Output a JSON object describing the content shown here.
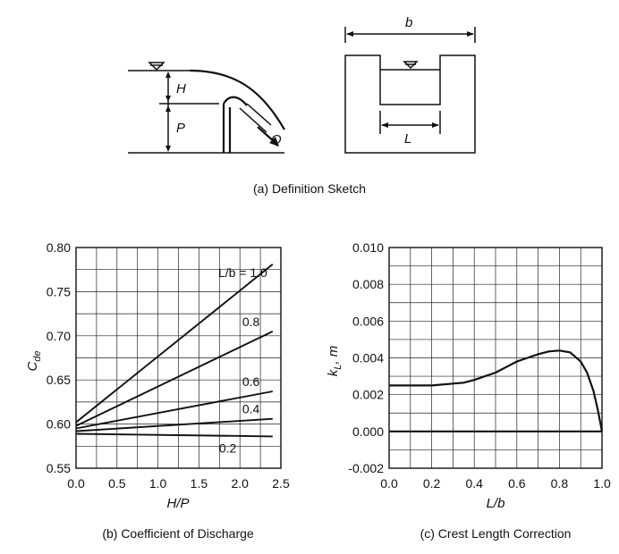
{
  "sketch": {
    "caption": "(a) Definition Sketch",
    "label_H": "H",
    "label_P": "P",
    "label_Q": "Q",
    "label_b": "b",
    "label_L": "L"
  },
  "chart_data": [
    {
      "type": "line",
      "caption": "(b) Coefficient of Discharge",
      "xlabel": "H/P",
      "ylabel": "C_de",
      "ylabel_main": "C",
      "ylabel_sub": "de",
      "xlim": [
        0.0,
        2.5
      ],
      "ylim": [
        0.55,
        0.8
      ],
      "xticks": [
        0.0,
        0.5,
        1.0,
        1.5,
        2.0,
        2.5
      ],
      "xtick_labels": [
        "0.0",
        "0.5",
        "1.0",
        "1.5",
        "2.0",
        "2.5"
      ],
      "yticks": [
        0.55,
        0.6,
        0.65,
        0.7,
        0.75,
        0.8
      ],
      "ytick_labels": [
        "0.55",
        "0.60",
        "0.65",
        "0.70",
        "0.75",
        "0.80"
      ],
      "grid": true,
      "series": [
        {
          "name": "L/b = 1.0",
          "label": "L/b = 1.0",
          "x": [
            0.0,
            2.4
          ],
          "y": [
            0.602,
            0.781
          ]
        },
        {
          "name": "0.8",
          "label": "0.8",
          "x": [
            0.0,
            2.4
          ],
          "y": [
            0.598,
            0.705
          ]
        },
        {
          "name": "0.6",
          "label": "0.6",
          "x": [
            0.0,
            2.4
          ],
          "y": [
            0.595,
            0.637
          ]
        },
        {
          "name": "0.4",
          "label": "0.4",
          "x": [
            0.0,
            2.4
          ],
          "y": [
            0.592,
            0.606
          ]
        },
        {
          "name": "0.2",
          "label": "0.2",
          "x": [
            0.0,
            2.4
          ],
          "y": [
            0.589,
            0.586
          ]
        }
      ]
    },
    {
      "type": "line",
      "caption": "(c) Crest Length Correction",
      "xlabel": "L/b",
      "ylabel": "k_L, m",
      "ylabel_main": "k",
      "ylabel_sub": "L",
      "ylabel_rest": ", m",
      "xlim": [
        0.0,
        1.0
      ],
      "ylim": [
        -0.002,
        0.01
      ],
      "xticks": [
        0.0,
        0.2,
        0.4,
        0.6,
        0.8,
        1.0
      ],
      "xtick_labels": [
        "0.0",
        "0.2",
        "0.4",
        "0.6",
        "0.8",
        "1.0"
      ],
      "yticks": [
        -0.002,
        0.0,
        0.002,
        0.004,
        0.006,
        0.008,
        0.01
      ],
      "ytick_labels": [
        "-0.002",
        "0.000",
        "0.002",
        "0.004",
        "0.006",
        "0.008",
        "0.010"
      ],
      "grid": true,
      "series": [
        {
          "x": [
            0.0,
            0.1,
            0.2,
            0.3,
            0.35,
            0.4,
            0.45,
            0.5,
            0.55,
            0.6,
            0.65,
            0.7,
            0.75,
            0.8,
            0.85,
            0.9,
            0.93,
            0.96,
            0.98,
            1.0
          ],
          "y": [
            0.0025,
            0.0025,
            0.0025,
            0.0026,
            0.00265,
            0.0028,
            0.003,
            0.0032,
            0.0035,
            0.0038,
            0.004,
            0.0042,
            0.00435,
            0.0044,
            0.0043,
            0.0038,
            0.0032,
            0.0022,
            0.0012,
            0.0
          ]
        },
        {
          "x": [
            0.0,
            1.0
          ],
          "y": [
            0.0,
            0.0
          ]
        }
      ]
    }
  ]
}
